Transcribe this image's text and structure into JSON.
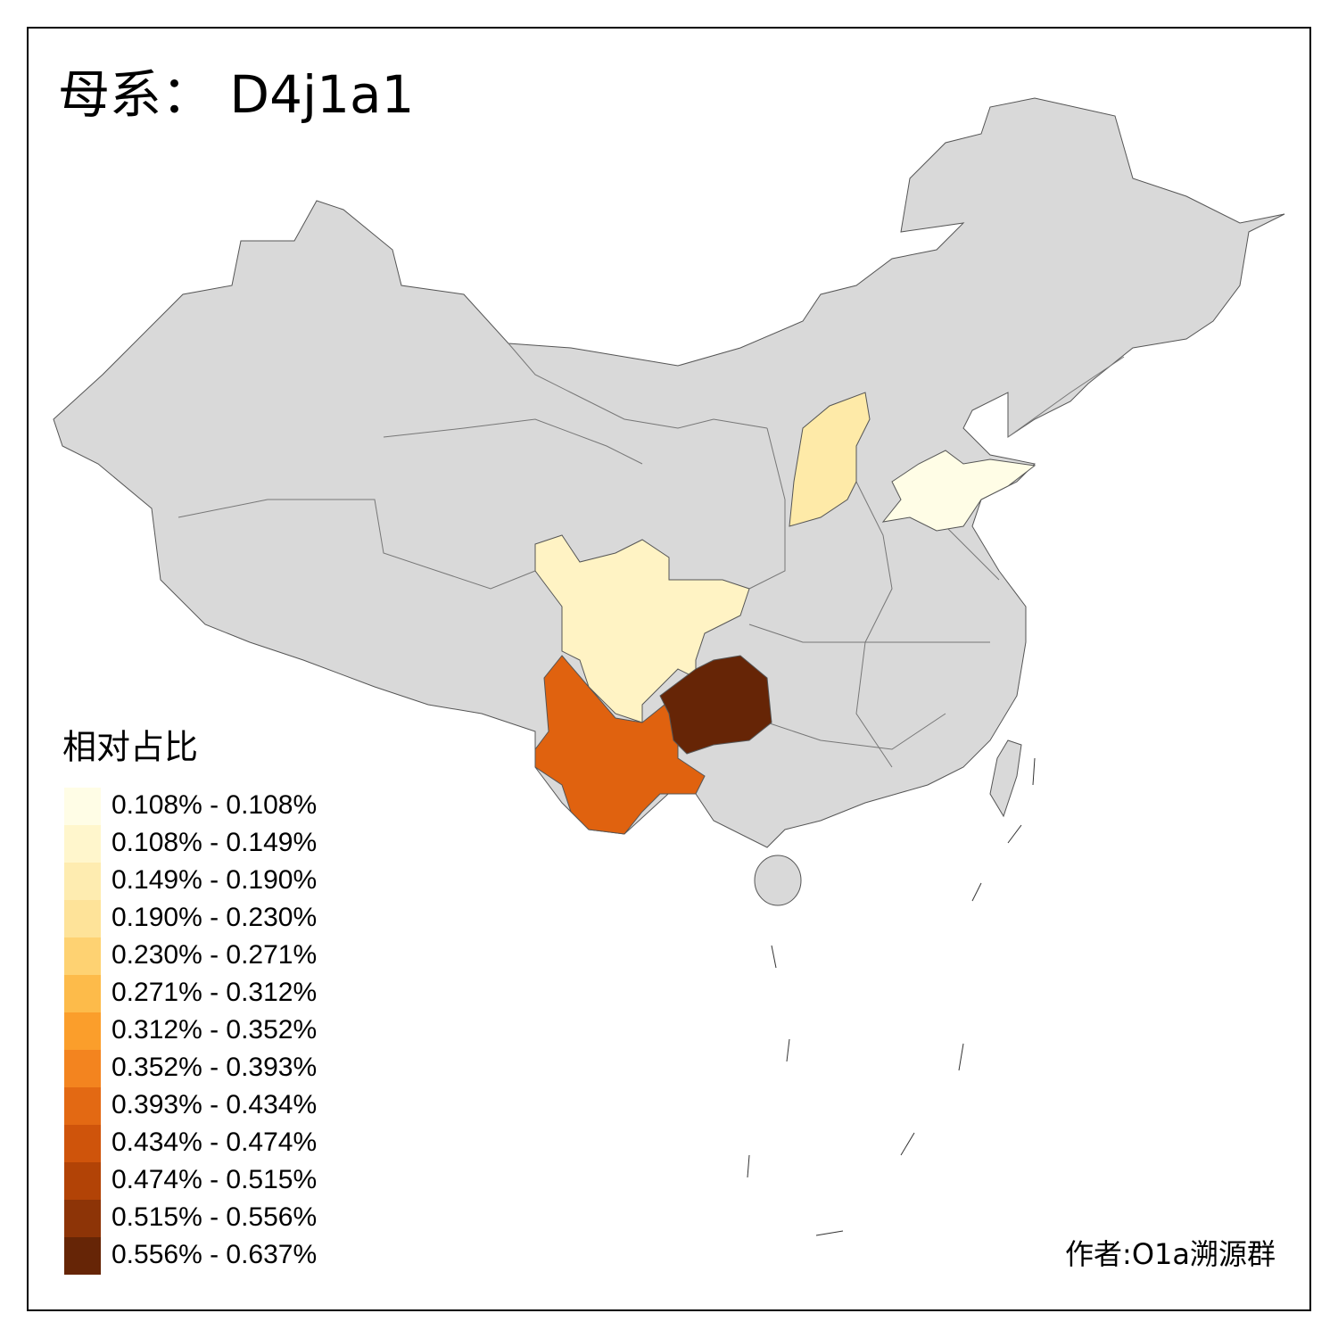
{
  "title": "母系： D4j1a1",
  "legend": {
    "title": "相对占比",
    "items": [
      {
        "label": "0.108% - 0.108%",
        "color": "#FFFDE6"
      },
      {
        "label": "0.108% - 0.149%",
        "color": "#FFF6CC"
      },
      {
        "label": "0.149% - 0.190%",
        "color": "#FEECB0"
      },
      {
        "label": "0.190% - 0.230%",
        "color": "#FEE399"
      },
      {
        "label": "0.230% - 0.271%",
        "color": "#FED272"
      },
      {
        "label": "0.271% - 0.312%",
        "color": "#FDBB4A"
      },
      {
        "label": "0.312% - 0.352%",
        "color": "#FB9E2B"
      },
      {
        "label": "0.352% - 0.393%",
        "color": "#F3841F"
      },
      {
        "label": "0.393% - 0.434%",
        "color": "#E36913"
      },
      {
        "label": "0.434% - 0.474%",
        "color": "#CF540B"
      },
      {
        "label": "0.474% - 0.515%",
        "color": "#B24306"
      },
      {
        "label": "0.515% - 0.556%",
        "color": "#8D3407"
      },
      {
        "label": "0.556% - 0.637%",
        "color": "#662506"
      }
    ]
  },
  "author": "作者:O1a溯源群"
}
